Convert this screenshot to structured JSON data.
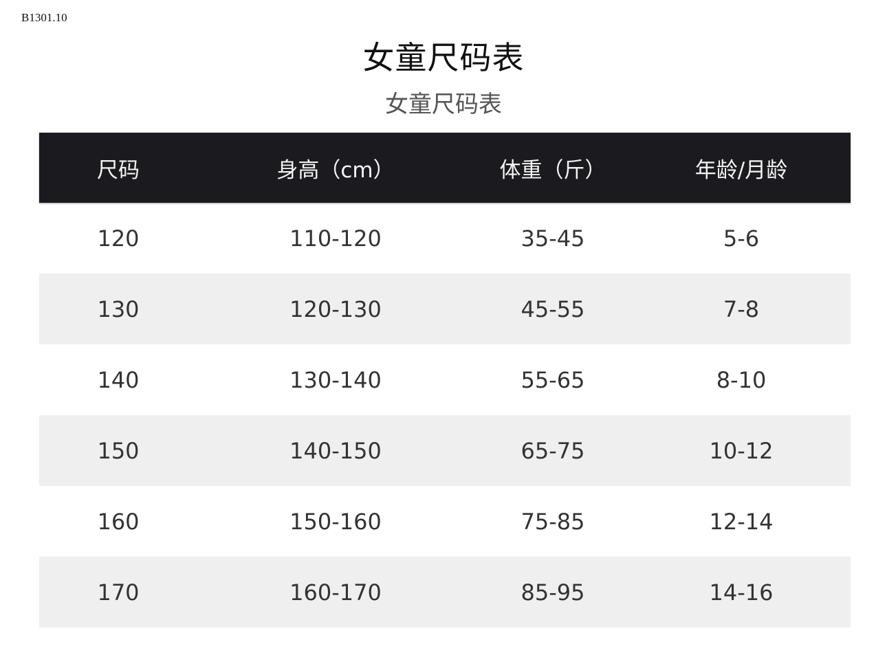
{
  "code": "B1301.10",
  "title": "女童尺码表",
  "subtitle": "女童尺码表",
  "table": {
    "headers": [
      "尺码",
      "身高（cm）",
      "体重（斤）",
      "年龄/月龄"
    ],
    "rows": [
      [
        "120",
        "110-120",
        "35-45",
        "5-6"
      ],
      [
        "130",
        "120-130",
        "45-55",
        "7-8"
      ],
      [
        "140",
        "130-140",
        "55-65",
        "8-10"
      ],
      [
        "150",
        "140-150",
        "65-75",
        "10-12"
      ],
      [
        "160",
        "150-160",
        "75-85",
        "12-14"
      ],
      [
        "170",
        "160-170",
        "85-95",
        "14-16"
      ]
    ]
  }
}
